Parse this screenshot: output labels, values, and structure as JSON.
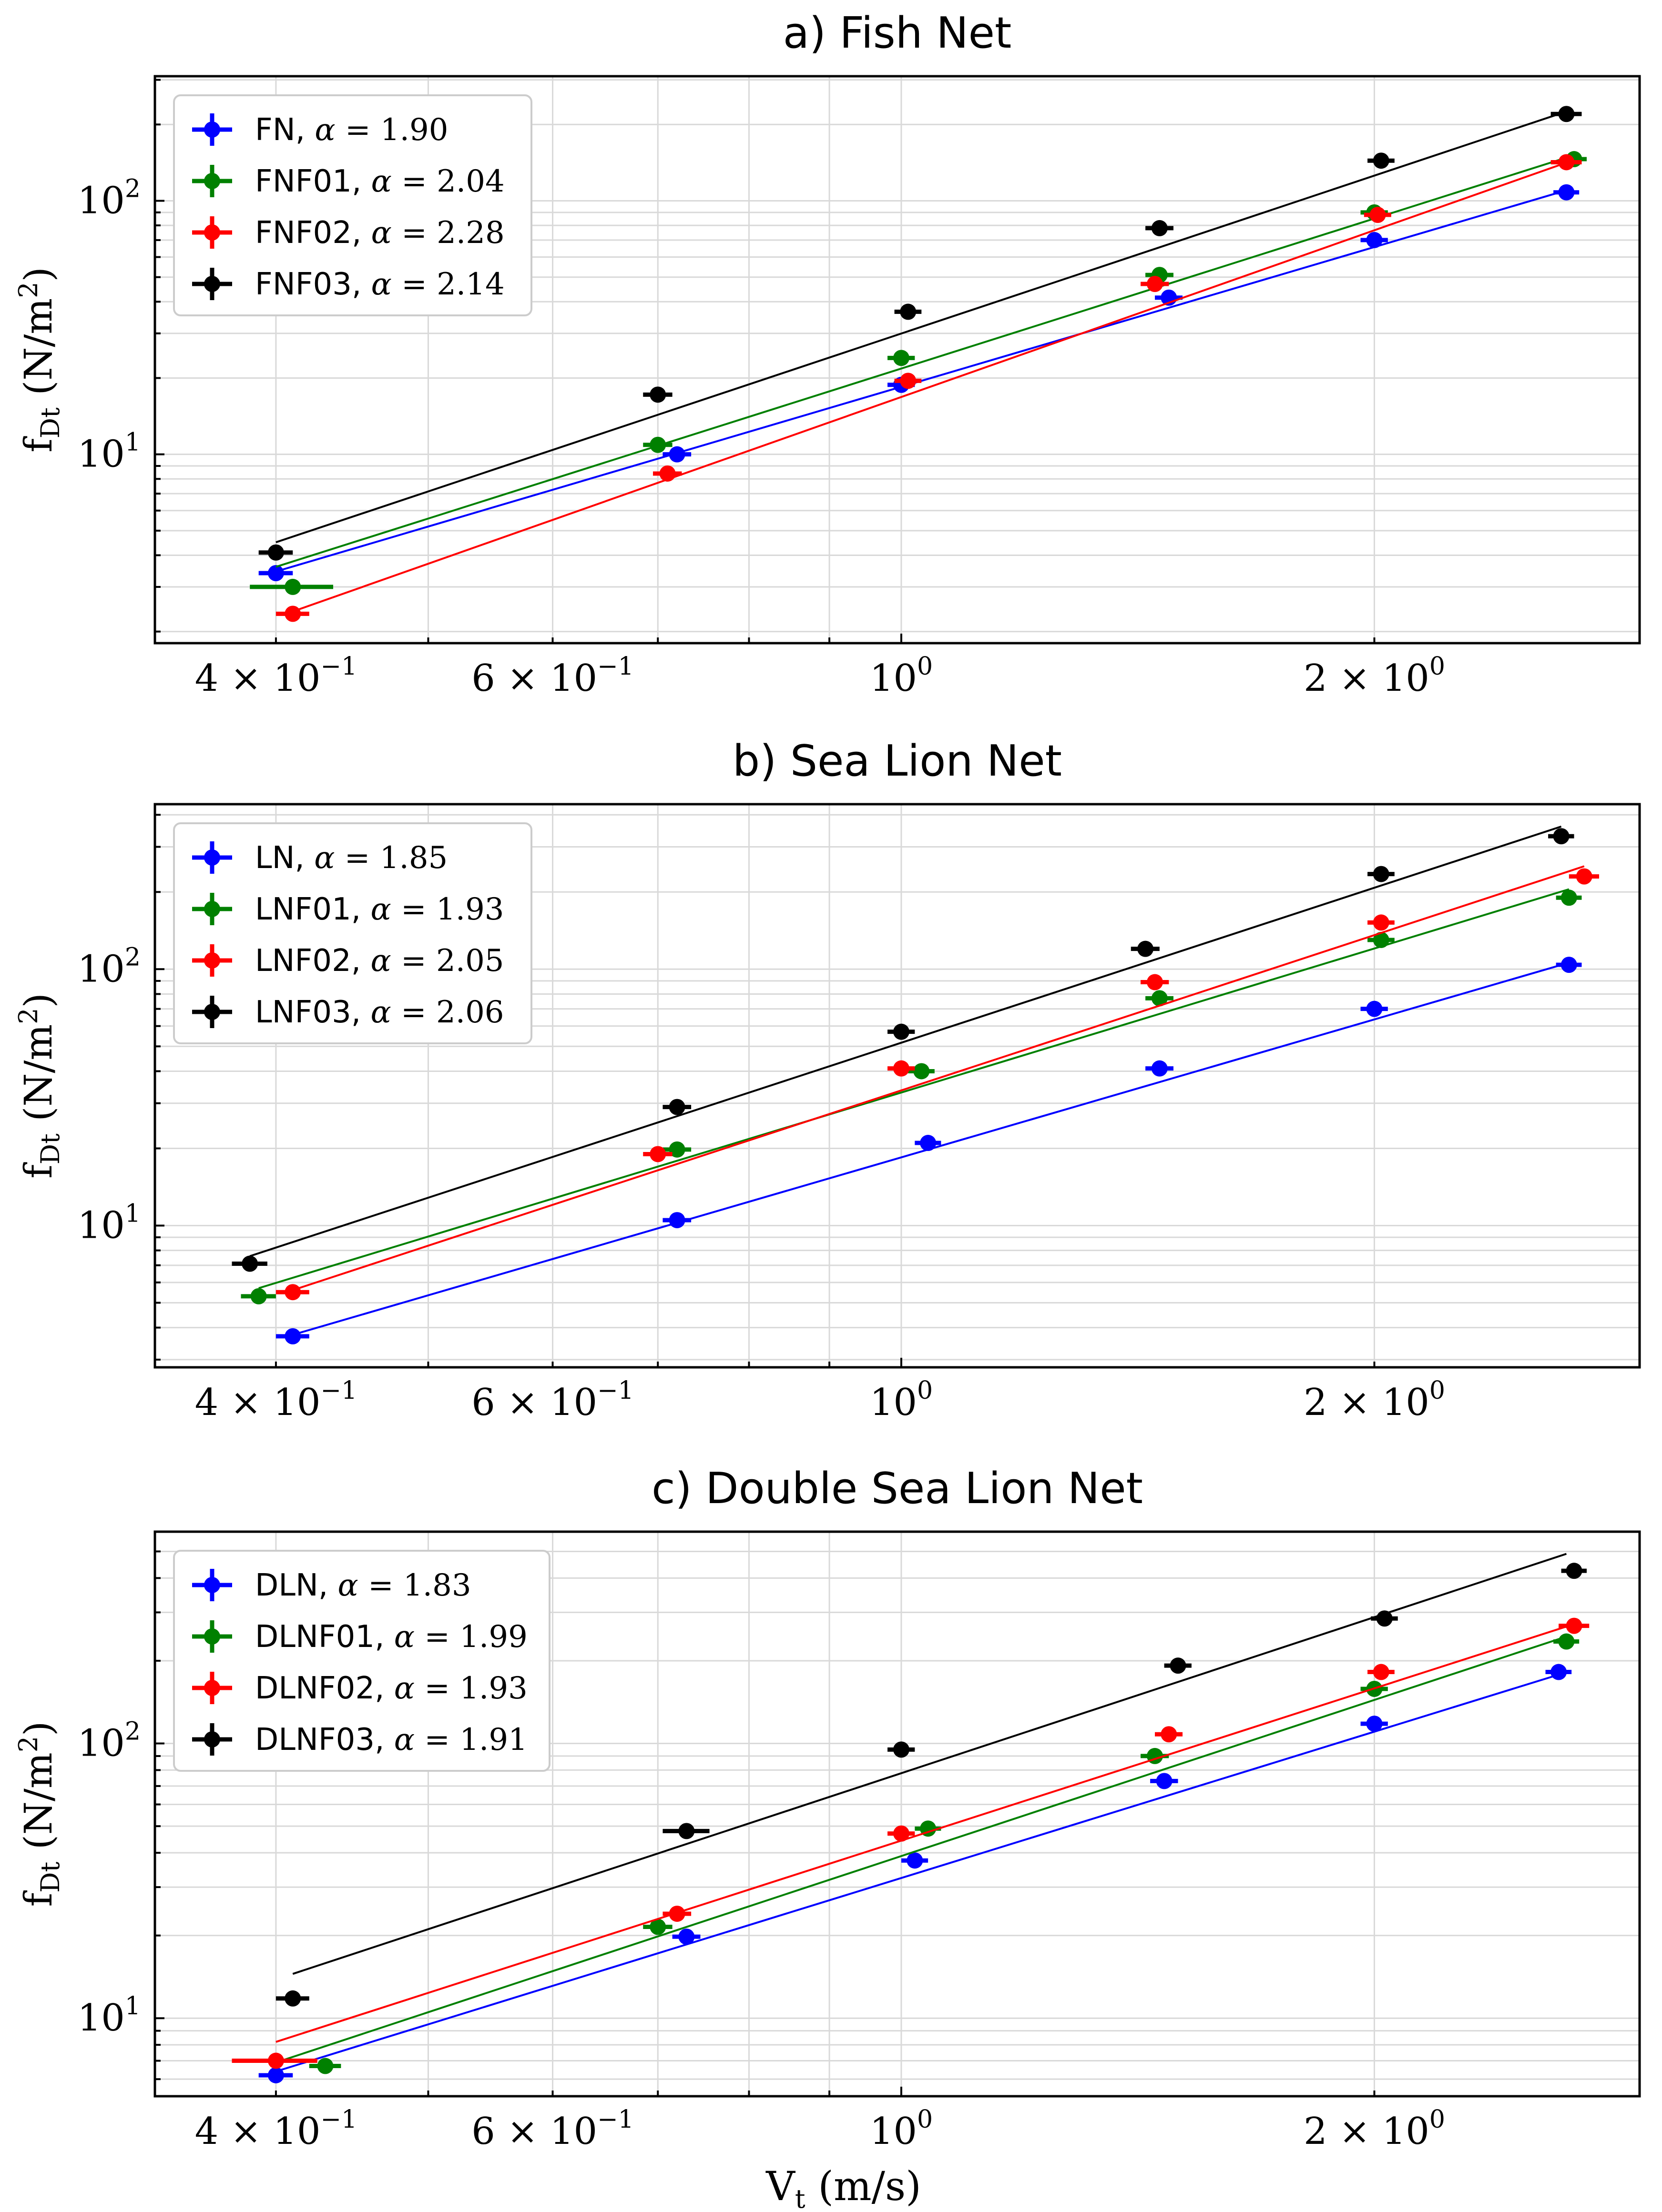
{
  "figure": {
    "xlabel": "V",
    "xlabel_sub": "t",
    "xlabel_unit": " (m/s)",
    "ylabel": "f",
    "ylabel_sub": "Dt",
    "ylabel_unit": " (N/m",
    "ylabel_unit_sup": "2",
    "ylabel_close": ")",
    "alpha_symbol": "α",
    "alpha_eq": " = ",
    "xticks": [
      {
        "value": 0.4,
        "mant": "4 × 10",
        "exp": "−1"
      },
      {
        "value": 0.6,
        "mant": "6 × 10",
        "exp": "−1"
      },
      {
        "value": 1.0,
        "mant": "10",
        "exp": "0"
      },
      {
        "value": 2.0,
        "mant": "2 × 10",
        "exp": "0"
      }
    ],
    "yticks": [
      {
        "value": 10,
        "mant": "10",
        "exp": "1"
      },
      {
        "value": 100,
        "mant": "10",
        "exp": "2"
      }
    ]
  },
  "chart_data": [
    {
      "type": "scatter",
      "title": "a) Fish Net",
      "xscale": "log",
      "yscale": "log",
      "xlim": [
        0.335,
        2.95
      ],
      "ylim": [
        1.8,
        310
      ],
      "legend_position": "top-left",
      "series": [
        {
          "name": "FN",
          "alpha": "1.90",
          "color": "#0000ff",
          "x": [
            0.4,
            0.72,
            1.0,
            1.48,
            2.0,
            2.65
          ],
          "y": [
            3.4,
            10.0,
            18.8,
            41.5,
            70.0,
            108
          ],
          "xerr": [
            0.01,
            0.015,
            0.02,
            0.03,
            0.04,
            0.05
          ],
          "fit": {
            "x": [
              0.4,
              2.65
            ],
            "y": [
              3.45,
              110
            ]
          }
        },
        {
          "name": "FNF01",
          "alpha": "2.04",
          "color": "#008000",
          "x": [
            0.41,
            0.7,
            1.0,
            1.46,
            2.0,
            2.68
          ],
          "y": [
            3.0,
            10.9,
            24.0,
            51.0,
            90.0,
            146
          ],
          "xerr": [
            0.025,
            0.015,
            0.02,
            0.03,
            0.04,
            0.05
          ],
          "fit": {
            "x": [
              0.4,
              2.65
            ],
            "y": [
              3.6,
              148
            ]
          }
        },
        {
          "name": "FNF02",
          "alpha": "2.28",
          "color": "#ff0000",
          "x": [
            0.41,
            0.71,
            1.01,
            1.45,
            2.01,
            2.65
          ],
          "y": [
            2.35,
            8.4,
            19.5,
            47.0,
            88.0,
            142
          ],
          "xerr": [
            0.01,
            0.015,
            0.02,
            0.03,
            0.04,
            0.06
          ],
          "fit": {
            "x": [
              0.41,
              2.68
            ],
            "y": [
              2.4,
              145
            ]
          }
        },
        {
          "name": "FNF03",
          "alpha": "2.14",
          "color": "#000000",
          "x": [
            0.4,
            0.7,
            1.01,
            1.46,
            2.02,
            2.65
          ],
          "y": [
            4.1,
            17.2,
            36.5,
            78.0,
            144,
            220
          ],
          "xerr": [
            0.01,
            0.015,
            0.02,
            0.03,
            0.04,
            0.06
          ],
          "fit": {
            "x": [
              0.4,
              2.65
            ],
            "y": [
              4.5,
              225
            ]
          }
        }
      ]
    },
    {
      "type": "scatter",
      "title": "b) Sea Lion Net",
      "xscale": "log",
      "yscale": "log",
      "xlim": [
        0.335,
        2.95
      ],
      "ylim": [
        2.8,
        440
      ],
      "legend_position": "top-left",
      "series": [
        {
          "name": "LN",
          "alpha": "1.85",
          "color": "#0000ff",
          "x": [
            0.41,
            0.72,
            1.04,
            1.46,
            2.0,
            2.66
          ],
          "y": [
            3.7,
            10.5,
            21.0,
            41.0,
            70.0,
            104
          ],
          "xerr": [
            0.01,
            0.015,
            0.02,
            0.03,
            0.04,
            0.05
          ],
          "fit": {
            "x": [
              0.41,
              2.66
            ],
            "y": [
              3.75,
              106
            ]
          }
        },
        {
          "name": "LNF01",
          "alpha": "1.93",
          "color": "#008000",
          "x": [
            0.39,
            0.72,
            1.03,
            1.46,
            2.02,
            2.66
          ],
          "y": [
            5.3,
            19.8,
            40.0,
            77.0,
            130,
            190
          ],
          "xerr": [
            0.01,
            0.015,
            0.02,
            0.03,
            0.04,
            0.05
          ],
          "fit": {
            "x": [
              0.39,
              2.66
            ],
            "y": [
              5.7,
              205
            ]
          }
        },
        {
          "name": "LNF02",
          "alpha": "2.05",
          "color": "#ff0000",
          "x": [
            0.41,
            0.7,
            1.0,
            1.45,
            2.02,
            2.72
          ],
          "y": [
            5.5,
            19.0,
            41.0,
            89.0,
            152,
            230
          ],
          "xerr": [
            0.01,
            0.015,
            0.02,
            0.03,
            0.04,
            0.06
          ],
          "fit": {
            "x": [
              0.41,
              2.72
            ],
            "y": [
              5.6,
              252
            ]
          }
        },
        {
          "name": "LNF03",
          "alpha": "2.06",
          "color": "#000000",
          "x": [
            0.385,
            0.72,
            1.0,
            1.43,
            2.02,
            2.63
          ],
          "y": [
            7.1,
            29.0,
            57.0,
            120,
            235,
            330
          ],
          "xerr": [
            0.01,
            0.015,
            0.02,
            0.03,
            0.04,
            0.05
          ],
          "fit": {
            "x": [
              0.385,
              2.63
            ],
            "y": [
              7.6,
              360
            ]
          }
        }
      ]
    },
    {
      "type": "scatter",
      "title": "c) Double Sea Lion Net",
      "xscale": "log",
      "yscale": "log",
      "xlim": [
        0.335,
        2.95
      ],
      "ylim": [
        5.2,
        590
      ],
      "legend_position": "top-left",
      "series": [
        {
          "name": "DLN",
          "alpha": "1.83",
          "color": "#0000ff",
          "x": [
            0.4,
            0.73,
            1.02,
            1.47,
            2.0,
            2.62
          ],
          "y": [
            6.2,
            19.8,
            37.5,
            73.0,
            118,
            182
          ],
          "xerr": [
            0.01,
            0.015,
            0.02,
            0.03,
            0.04,
            0.05
          ],
          "fit": {
            "x": [
              0.4,
              2.62
            ],
            "y": [
              6.4,
              178
            ]
          }
        },
        {
          "name": "DLNF01",
          "alpha": "1.99",
          "color": "#008000",
          "x": [
            0.43,
            0.7,
            1.04,
            1.45,
            2.0,
            2.65
          ],
          "y": [
            6.7,
            21.5,
            49.0,
            90.0,
            158,
            235
          ],
          "xerr": [
            0.01,
            0.015,
            0.02,
            0.03,
            0.04,
            0.05
          ],
          "fit": {
            "x": [
              0.4,
              2.65
            ],
            "y": [
              6.9,
              245
            ]
          }
        },
        {
          "name": "DLNF02",
          "alpha": "1.93",
          "color": "#ff0000",
          "x": [
            0.4,
            0.72,
            1.0,
            1.48,
            2.02,
            2.68
          ],
          "y": [
            7.0,
            24.0,
            47.0,
            108,
            182,
            268
          ],
          "xerr": [
            0.025,
            0.015,
            0.02,
            0.03,
            0.04,
            0.06
          ],
          "fit": {
            "x": [
              0.4,
              2.68
            ],
            "y": [
              8.2,
              272
            ]
          }
        },
        {
          "name": "DLNF03",
          "alpha": "1.91",
          "color": "#000000",
          "x": [
            0.41,
            0.73,
            1.0,
            1.5,
            2.03,
            2.68
          ],
          "y": [
            11.8,
            48.0,
            95.0,
            192,
            285,
            425
          ],
          "xerr": [
            0.01,
            0.025,
            0.02,
            0.03,
            0.04,
            0.05
          ],
          "fit": {
            "x": [
              0.41,
              2.65
            ],
            "y": [
              14.5,
              490
            ]
          }
        }
      ]
    }
  ]
}
